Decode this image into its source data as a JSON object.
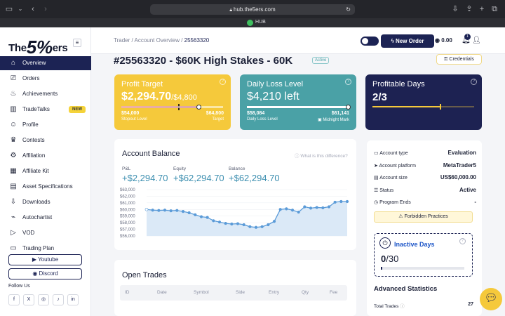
{
  "browser": {
    "url": "hub.the5ers.com",
    "tab_title": "HUB"
  },
  "brand": {
    "name_left": "The",
    "name_num": "5%",
    "name_right": "ers"
  },
  "sidebar": {
    "items": [
      {
        "label": "Overview",
        "icon": "home-icon"
      },
      {
        "label": "Orders",
        "icon": "cart-icon"
      },
      {
        "label": "Achievements",
        "icon": "badge-icon"
      },
      {
        "label": "TradeTalks",
        "icon": "chart-icon",
        "badge": "NEW"
      },
      {
        "label": "Profile",
        "icon": "user-icon"
      },
      {
        "label": "Contests",
        "icon": "trophy-icon"
      },
      {
        "label": "Affiliation",
        "icon": "gear-icon"
      },
      {
        "label": "Affiliate Kit",
        "icon": "kit-icon"
      },
      {
        "label": "Asset Specifications",
        "icon": "spec-icon"
      },
      {
        "label": "Downloads",
        "icon": "download-icon"
      },
      {
        "label": "Autochartist",
        "icon": "autochart-icon"
      },
      {
        "label": "VOD",
        "icon": "play-icon"
      },
      {
        "label": "Trading Plan",
        "icon": "plan-icon"
      }
    ],
    "youtube": "Youtube",
    "discord": "Discord",
    "follow": "Follow Us"
  },
  "topbar": {
    "crumb1": "Trader",
    "crumb2": "Account Overview",
    "crumb3": "25563320",
    "new_order": "New Order",
    "balance": "0.00",
    "notif_count": "1"
  },
  "account": {
    "title": "#25563320 - $60K High Stakes - 60K",
    "status": "Active",
    "credentials": "Credentials"
  },
  "profit": {
    "title": "Profit Target",
    "value": "$2,294.70",
    "target": "/$4,800",
    "left_val": "$54,000",
    "left_label": "Stopout Level",
    "right_val": "$64,800",
    "right_label": "Target",
    "progress": 0.478
  },
  "loss": {
    "title": "Daily Loss Level",
    "value": "$4,210 left",
    "left_val": "$58,084",
    "left_label": "Daily Loss Level",
    "right_val": "$61,141",
    "right_label": "Midnight Mark",
    "progress": 1.0
  },
  "days": {
    "title": "Profitable Days",
    "value": "2/3",
    "progress": 0.667
  },
  "balance_card": {
    "title": "Account Balance",
    "help": "What is this difference?",
    "pnl_label": "P&L",
    "pnl": "+$2,294.70",
    "equity_label": "Equity",
    "equity": "+$62,294.70",
    "balance_label": "Balance",
    "balance": "+$62,294.70"
  },
  "chart_data": {
    "type": "area",
    "ylim": [
      56000,
      63000
    ],
    "yticks": [
      "$63,000",
      "$62,000",
      "$61,000",
      "$60,000",
      "$59,000",
      "$58,000",
      "$57,000",
      "$56,000"
    ],
    "values": [
      60000,
      59900,
      59850,
      59900,
      59800,
      59850,
      59700,
      59500,
      59200,
      58900,
      58800,
      58300,
      58100,
      57900,
      57800,
      57850,
      57700,
      57400,
      57300,
      57400,
      57700,
      58200,
      60000,
      60100,
      59900,
      59600,
      60400,
      60200,
      60300,
      60250,
      60400,
      61100,
      61200,
      61200
    ]
  },
  "trades": {
    "title": "Open Trades",
    "columns": [
      "ID",
      "Date",
      "Symbol",
      "Side",
      "Entry",
      "Qty",
      "Fee"
    ]
  },
  "stats": {
    "rows": [
      {
        "label": "Account type",
        "value": "Evaluation",
        "icon": "type-icon"
      },
      {
        "label": "Account platform",
        "value": "MetaTrader5",
        "icon": "platform-icon"
      },
      {
        "label": "Account size",
        "value": "US$60,000.00",
        "icon": "size-icon"
      },
      {
        "label": "Status",
        "value": "Active",
        "icon": "status-icon"
      },
      {
        "label": "Program Ends",
        "value": "-",
        "icon": "clock-icon"
      }
    ],
    "forbidden": "Forbidden Practices",
    "inactive_title": "Inactive Days",
    "inactive_value": "0",
    "inactive_total": "/30",
    "inactive_progress": 0.0,
    "advanced": "Advanced Statistics",
    "total_trades_label": "Total Trades",
    "total_trades": "27"
  },
  "colors": {
    "navy": "#1c2354",
    "yellow": "#f5c93b",
    "teal": "#4aa1a6",
    "dark": "#1d2252",
    "line": "#5b9bd8"
  }
}
